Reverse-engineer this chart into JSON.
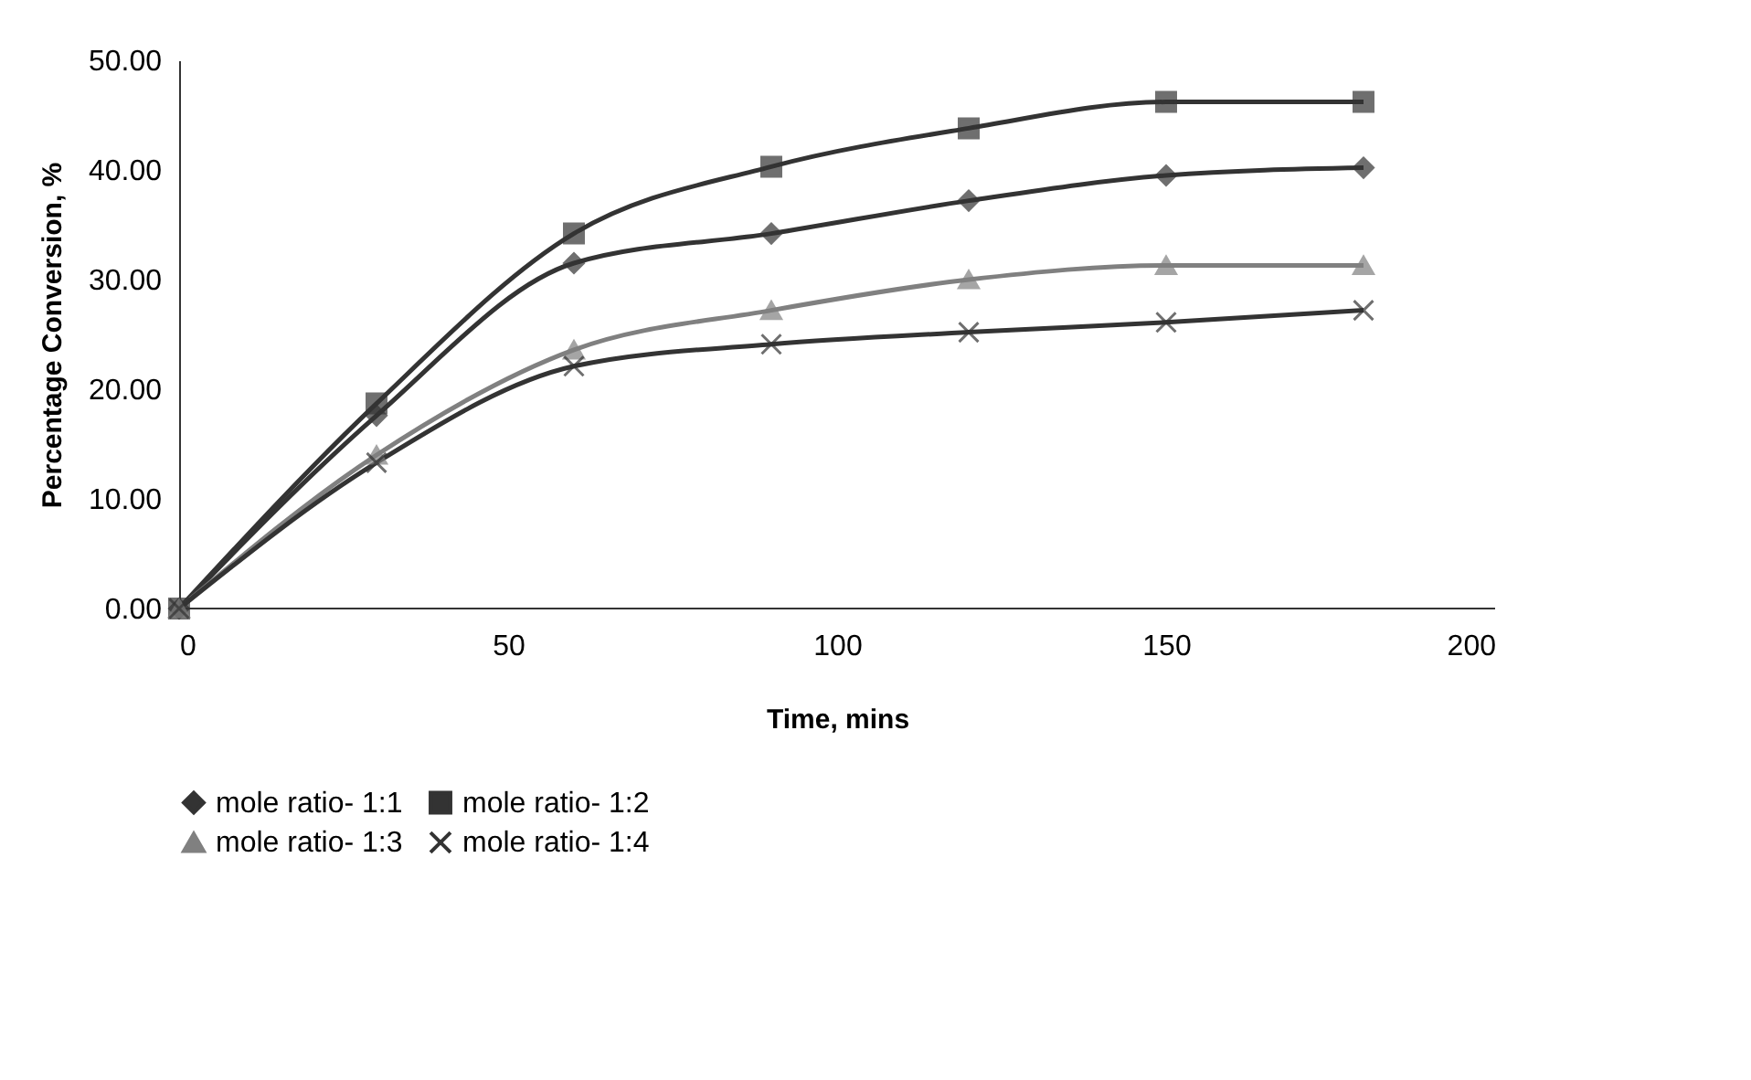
{
  "chart_data": {
    "type": "line",
    "xlabel": "Time, mins",
    "ylabel": "Percentage Conversion, %",
    "x": [
      0,
      30,
      60,
      90,
      120,
      150,
      180
    ],
    "series": [
      {
        "name": "mole ratio- 1:1",
        "color": "#333333",
        "marker": "diamond",
        "values": [
          0,
          17.6,
          31.5,
          34.2,
          37.2,
          39.5,
          40.2
        ]
      },
      {
        "name": "mole ratio- 1:2",
        "color": "#333333",
        "marker": "square",
        "values": [
          0,
          18.7,
          34.2,
          40.3,
          43.8,
          46.2,
          46.2
        ]
      },
      {
        "name": "mole ratio- 1:3",
        "color": "#808080",
        "marker": "triangle",
        "values": [
          0,
          14.0,
          23.6,
          27.2,
          30.0,
          31.3,
          31.3
        ]
      },
      {
        "name": "mole ratio- 1:4",
        "color": "#333333",
        "marker": "cross",
        "values": [
          0,
          13.3,
          22.1,
          24.1,
          25.2,
          26.1,
          27.2
        ]
      }
    ],
    "xlim": [
      0,
      200
    ],
    "xticks": [
      0,
      50,
      100,
      150,
      200
    ],
    "ylim": [
      0,
      50
    ],
    "yticks": [
      {
        "value": 0,
        "label": "0.00"
      },
      {
        "value": 10,
        "label": "10.00"
      },
      {
        "value": 20,
        "label": "20.00"
      },
      {
        "value": 30,
        "label": "30.00"
      },
      {
        "value": 40,
        "label": "40.00"
      },
      {
        "value": 50,
        "label": "50.00"
      }
    ],
    "grid": false,
    "legend": "bottom",
    "line_style": "solid"
  }
}
